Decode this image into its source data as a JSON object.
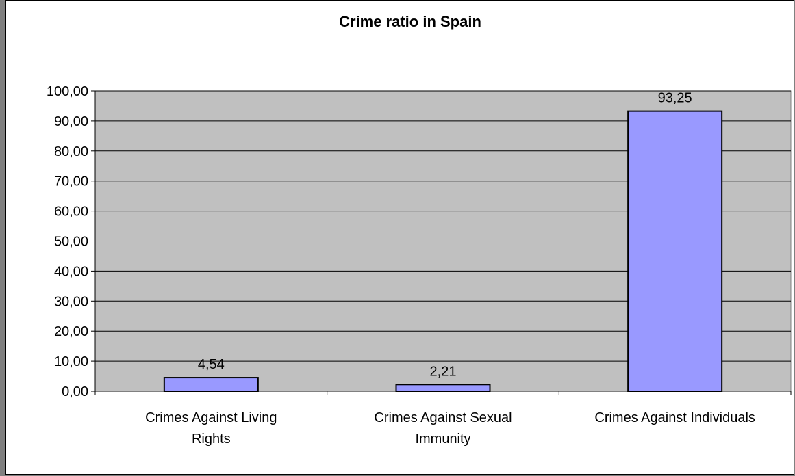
{
  "chart_data": {
    "type": "bar",
    "title": "Crime ratio in Spain",
    "categories": [
      [
        "Crimes Against Living",
        "Rights"
      ],
      [
        "Crimes Against Sexual",
        "Immunity"
      ],
      [
        "Crimes Against Individuals"
      ]
    ],
    "values": [
      4.54,
      2.21,
      93.25
    ],
    "value_labels": [
      "4,54",
      "2,21",
      "93,25"
    ],
    "ylim": [
      0,
      100
    ],
    "yticks": [
      0,
      10,
      20,
      30,
      40,
      50,
      60,
      70,
      80,
      90,
      100
    ],
    "ytick_labels": [
      "0,00",
      "10,00",
      "20,00",
      "30,00",
      "40,00",
      "50,00",
      "60,00",
      "70,00",
      "80,00",
      "90,00",
      "100,00"
    ],
    "grid": true,
    "legend": false,
    "colors": {
      "plot_background": "#c0c0c0",
      "bar_fill": "#9999ff",
      "bar_stroke": "#000000",
      "gridline": "#000000"
    }
  }
}
